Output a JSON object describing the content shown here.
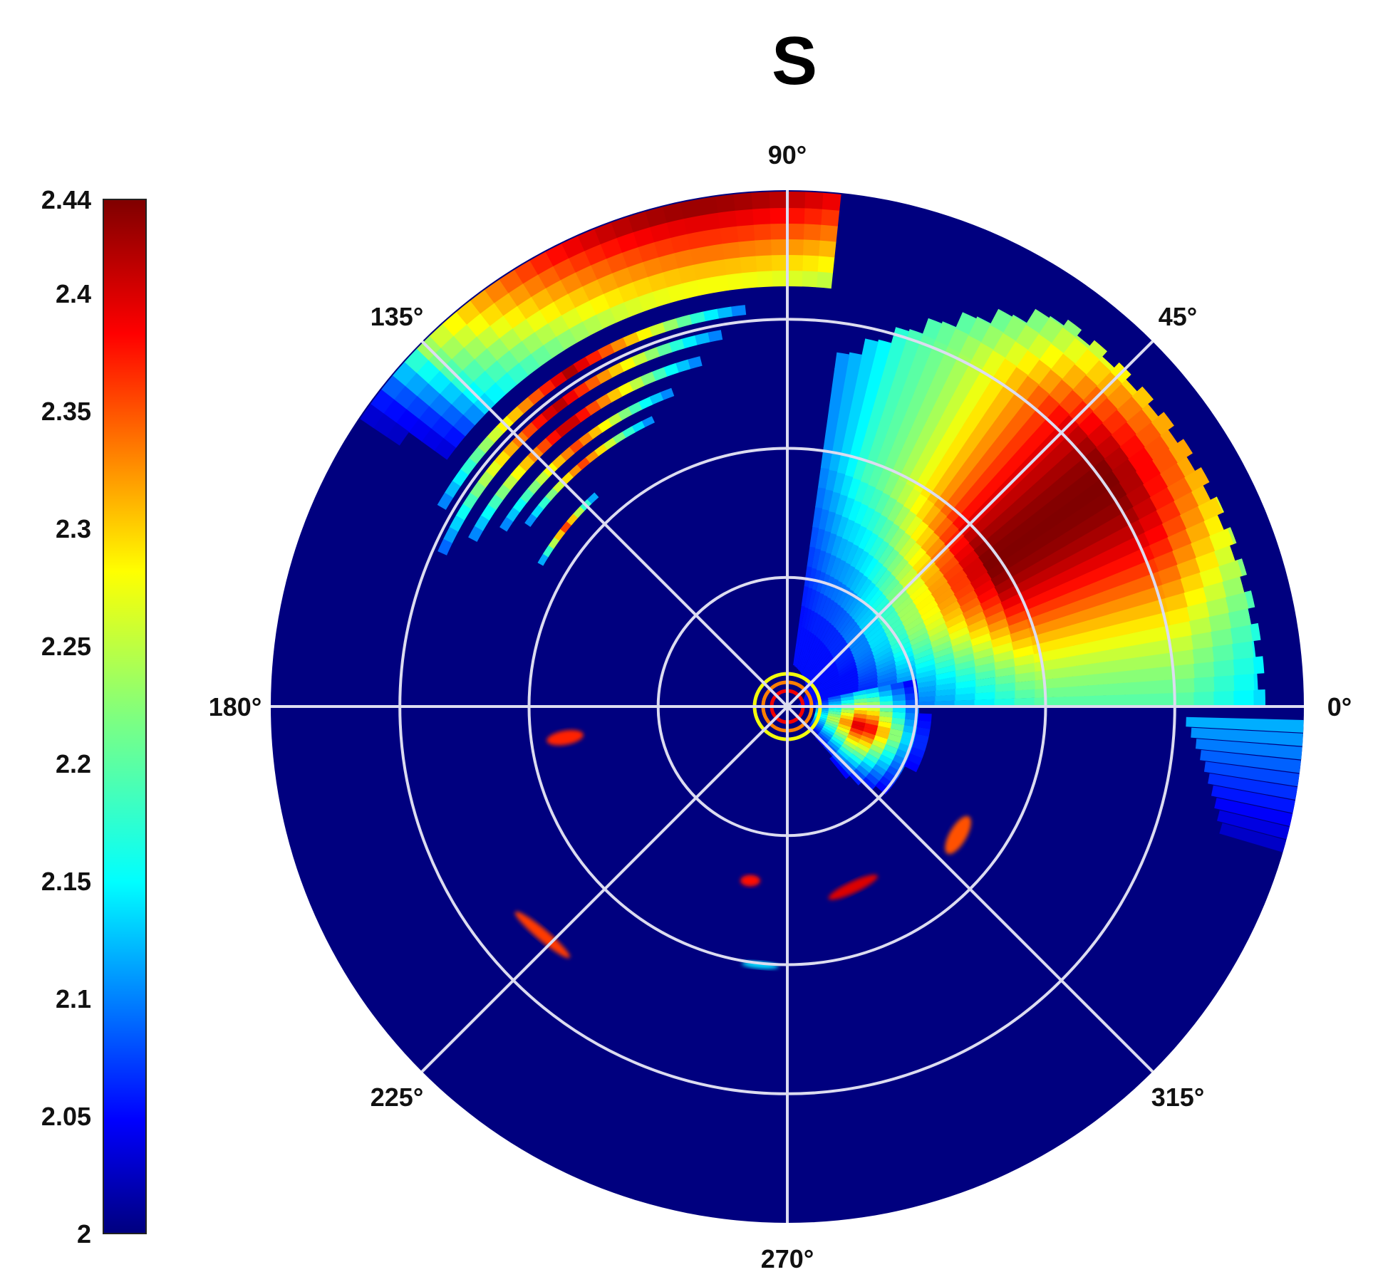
{
  "chart_data": {
    "type": "heatmap",
    "title": "S",
    "projection": "polar",
    "angle_ticks": [
      "0°",
      "45°",
      "90°",
      "135°",
      "180°",
      "225°",
      "270°",
      "315°"
    ],
    "radial_rings": 3,
    "grid": true,
    "colormap": "jet",
    "colorbar": {
      "placement": "left",
      "min": 2,
      "max": 2.44,
      "ticks": [
        "2",
        "2.05",
        "2.1",
        "2.15",
        "2.2",
        "2.25",
        "2.3",
        "2.35",
        "2.4",
        "2.44"
      ]
    },
    "background_value": 2,
    "regions": [
      {
        "name": "right-lobe",
        "theta_range_deg": [
          0,
          82
        ],
        "peak_value": 2.44,
        "peak_theta_deg": 35
      },
      {
        "name": "upper-left-arcs",
        "theta_range_deg": [
          84,
          160
        ],
        "peak_value": 2.4
      },
      {
        "name": "center-feature",
        "theta_range_deg": [
          300,
          360
        ],
        "peak_value": 2.4
      }
    ],
    "colors": {
      "background": "#00007f",
      "grid": "#dcdcf0"
    }
  }
}
